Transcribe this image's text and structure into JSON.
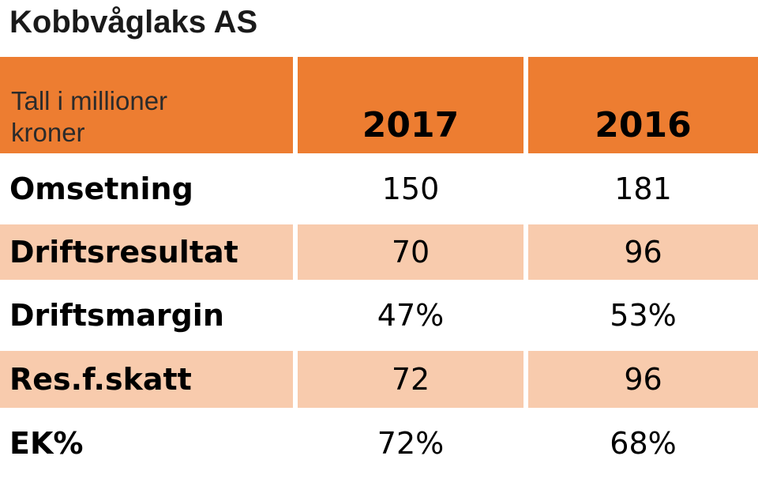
{
  "title": "Kobbvåglaks AS",
  "chart_data": {
    "type": "table",
    "title": "Kobbvåglaks AS",
    "unit_label": "Tall i millioner kroner",
    "unit_label_lines": [
      "Tall i millioner",
      "kroner"
    ],
    "columns": [
      "2017",
      "2016"
    ],
    "rows": [
      {
        "label": "Omsetning",
        "values": [
          "150",
          "181"
        ]
      },
      {
        "label": "Driftsresultat",
        "values": [
          "70",
          "96"
        ]
      },
      {
        "label": "Driftsmargin",
        "values": [
          "47%",
          "53%"
        ]
      },
      {
        "label": "Res.f.skatt",
        "values": [
          "72",
          "96"
        ]
      },
      {
        "label": "EK%",
        "values": [
          "72%",
          "68%"
        ]
      }
    ]
  },
  "colors": {
    "header_fill": "#ed7d31",
    "band_fill": "#f8cbad",
    "plain_fill": "#ffffff"
  }
}
